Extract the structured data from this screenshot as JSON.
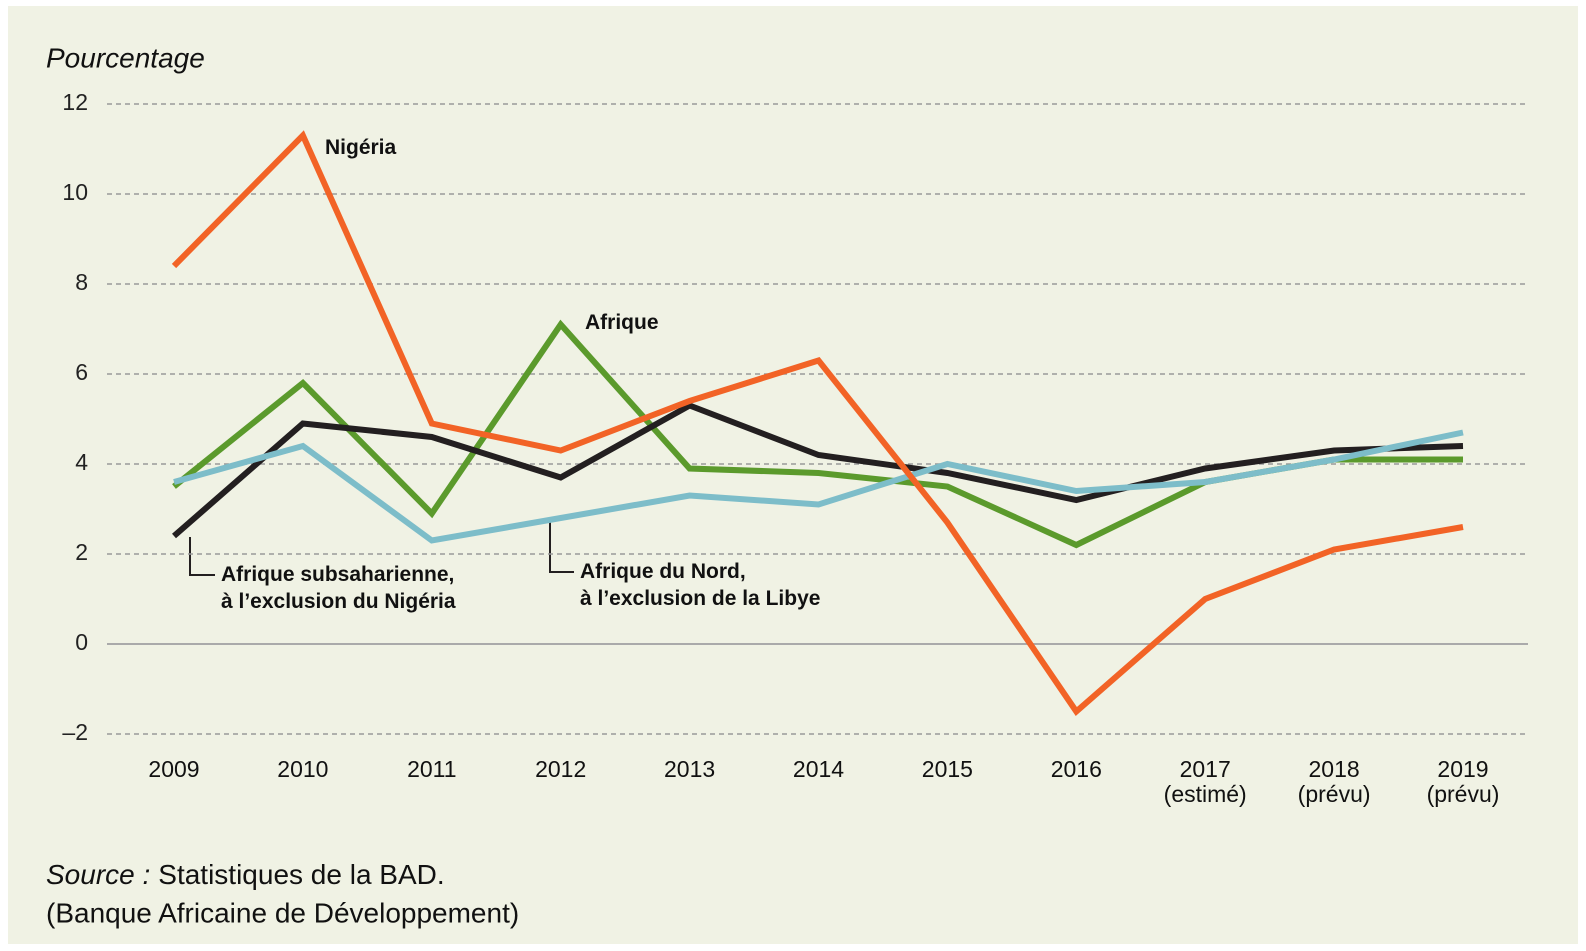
{
  "chart_data": {
    "type": "line",
    "y_label": "Pourcentage",
    "categories": [
      "2009",
      "2010",
      "2011",
      "2012",
      "2013",
      "2014",
      "2015",
      "2016",
      "2017\n(estimé)",
      "2018\n(prévu)",
      "2019\n(prévu)"
    ],
    "series": [
      {
        "name": "Afrique",
        "color": "#5b9a2c",
        "values": [
          3.5,
          5.8,
          2.9,
          7.1,
          3.9,
          3.8,
          3.5,
          2.2,
          3.6,
          4.1,
          4.1
        ]
      },
      {
        "name": "Afrique subsaharienne,\nà l’exclusion du Nigéria",
        "color": "#231f20",
        "values": [
          2.4,
          4.9,
          4.6,
          3.7,
          5.3,
          4.2,
          3.8,
          3.2,
          3.9,
          4.3,
          4.4
        ]
      },
      {
        "name": "Afrique du Nord,\nà l’exclusion de la Libye",
        "color": "#7dbdc9",
        "values": [
          3.6,
          4.4,
          2.3,
          2.8,
          3.3,
          3.1,
          4.0,
          3.4,
          3.6,
          4.1,
          4.7
        ]
      },
      {
        "name": "Nigéria",
        "color": "#f26326",
        "values": [
          8.4,
          11.3,
          4.9,
          4.3,
          5.4,
          6.3,
          2.7,
          -1.5,
          1.0,
          2.1,
          2.6
        ]
      }
    ],
    "ylim": [
      -2.5,
      12.5
    ],
    "yticks": [
      {
        "value": -2,
        "label": "–2"
      },
      0,
      2,
      4,
      6,
      8,
      10,
      12
    ],
    "grid": true,
    "source_label": "Source :",
    "source_text": "Statistiques de la BAD.",
    "source_note": "(Banque Africaine de Développement)"
  }
}
